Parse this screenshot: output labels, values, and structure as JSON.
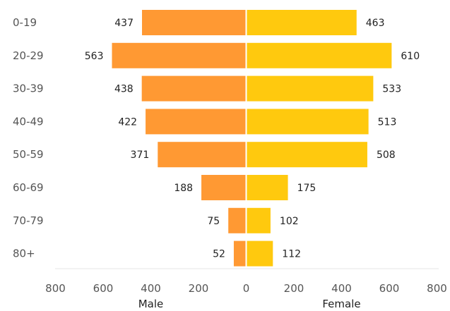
{
  "chart_data": {
    "type": "bar",
    "orientation": "horizontal-diverging",
    "categories": [
      "0-19",
      "20-29",
      "30-39",
      "40-49",
      "50-59",
      "60-69",
      "70-79",
      "80+"
    ],
    "series": [
      {
        "name": "Male",
        "values": [
          437,
          563,
          438,
          422,
          371,
          188,
          75,
          52
        ],
        "color": "#ff9933"
      },
      {
        "name": "Female",
        "values": [
          463,
          610,
          533,
          513,
          508,
          175,
          102,
          112
        ],
        "color": "#ffc90e"
      }
    ],
    "x_ticks": [
      "800",
      "600",
      "400",
      "200",
      "0",
      "200",
      "400",
      "600",
      "800"
    ],
    "xlim": [
      -800,
      800
    ],
    "x_labels": [
      "Male",
      "Female"
    ],
    "title": "",
    "grid": false,
    "legend": "none"
  }
}
